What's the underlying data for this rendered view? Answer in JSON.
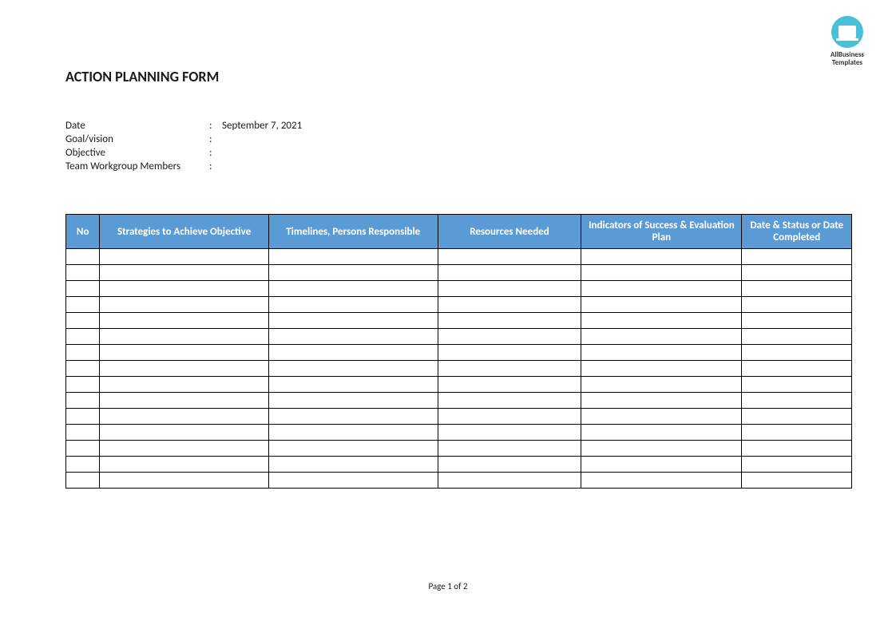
{
  "logo": {
    "line1": "AllBusiness",
    "line2": "Templates"
  },
  "title": "ACTION PLANNING FORM",
  "info": {
    "date": {
      "label": "Date",
      "value": "September 7, 2021"
    },
    "goal": {
      "label": "Goal/vision",
      "value": ""
    },
    "objective": {
      "label": "Objective",
      "value": ""
    },
    "team": {
      "label": "Team Workgroup Members",
      "value": ""
    }
  },
  "table": {
    "header_bg": "#5b9bd5",
    "header_color": "#ffffff",
    "border_color": "#000000",
    "columns": [
      "No",
      "Strategies to Achieve Objective",
      "Timelines, Persons Responsible",
      "Resources Needed",
      "Indicators of Success & Evaluation Plan",
      "Date & Status or Date Completed"
    ],
    "row_count": 15
  },
  "footer": {
    "page_text": "Page 1 of 2"
  }
}
